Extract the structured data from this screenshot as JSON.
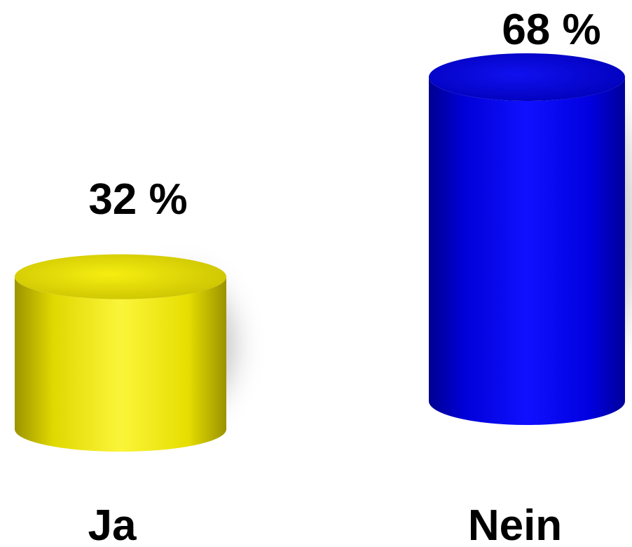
{
  "chart_data": {
    "type": "bar",
    "style": "3d-cylinder",
    "categories": [
      "Ja",
      "Nein"
    ],
    "values": [
      32,
      68
    ],
    "unit": "%",
    "value_labels": [
      "32 %",
      "68 %"
    ],
    "colors": [
      "#f2ea00",
      "#0000e6"
    ],
    "ylim": [
      0,
      68
    ],
    "grid": false,
    "legend": "none"
  }
}
